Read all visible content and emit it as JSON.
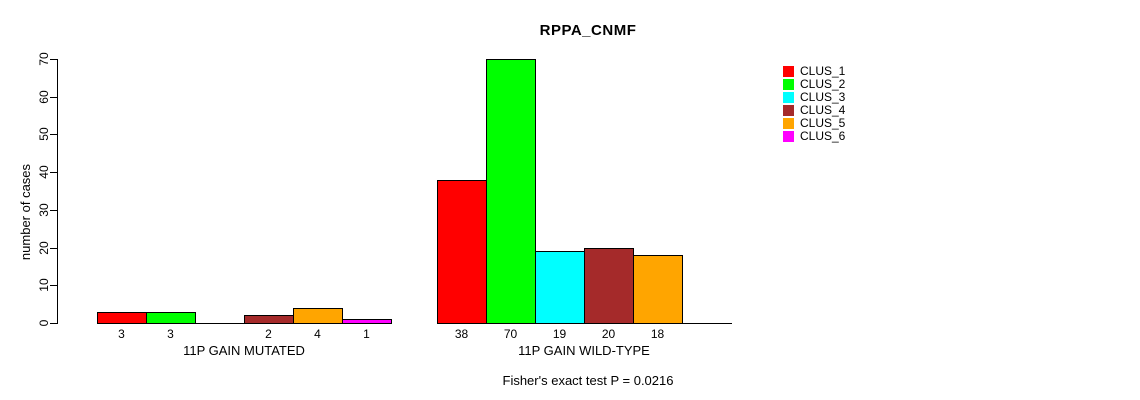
{
  "title": "RPPA_CNMF",
  "y_axis": {
    "label": "number of cases",
    "ticks": [
      0,
      10,
      20,
      30,
      40,
      50,
      60,
      70
    ]
  },
  "footnote": "Fisher's exact test P = 0.0216",
  "legend": {
    "items": [
      {
        "label": "CLUS_1",
        "color": "#FF0000"
      },
      {
        "label": "CLUS_2",
        "color": "#00FF00"
      },
      {
        "label": "CLUS_3",
        "color": "#00FFFF"
      },
      {
        "label": "CLUS_4",
        "color": "#A52A2A"
      },
      {
        "label": "CLUS_5",
        "color": "#FFA500"
      },
      {
        "label": "CLUS_6",
        "color": "#FF00FF"
      }
    ]
  },
  "chart_data": {
    "type": "bar",
    "title": "RPPA_CNMF",
    "xlabel": "",
    "ylabel": "number of cases",
    "ylim": [
      0,
      70
    ],
    "yticks": [
      0,
      10,
      20,
      30,
      40,
      50,
      60,
      70
    ],
    "grid": false,
    "legend_position": "right",
    "categories": [
      "CLUS_1",
      "CLUS_2",
      "CLUS_3",
      "CLUS_4",
      "CLUS_5",
      "CLUS_6"
    ],
    "colors": [
      "#FF0000",
      "#00FF00",
      "#00FFFF",
      "#A52A2A",
      "#FFA500",
      "#FF00FF"
    ],
    "groups": [
      {
        "label": "11P GAIN MUTATED",
        "values": [
          3,
          3,
          0,
          2,
          4,
          1
        ]
      },
      {
        "label": "11P GAIN WILD-TYPE",
        "values": [
          38,
          70,
          19,
          20,
          18,
          0
        ]
      }
    ],
    "bar_value_labels_shown": true,
    "zero_bars_unlabeled": true,
    "annotation": "Fisher's exact test P = 0.0216"
  }
}
